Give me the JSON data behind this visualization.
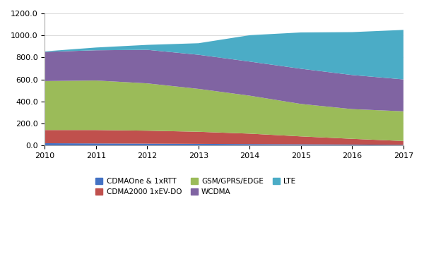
{
  "years": [
    2010,
    2011,
    2012,
    2013,
    2014,
    2015,
    2016,
    2017
  ],
  "cdma_one": [
    20,
    18,
    16,
    14,
    12,
    10,
    8,
    5
  ],
  "cdma2000": [
    120,
    122,
    118,
    110,
    95,
    72,
    52,
    35
  ],
  "gsm": [
    445,
    450,
    430,
    390,
    345,
    295,
    270,
    270
  ],
  "wcdma": [
    265,
    275,
    305,
    310,
    310,
    320,
    310,
    290
  ],
  "lte": [
    5,
    25,
    45,
    105,
    240,
    330,
    390,
    450
  ],
  "colors": {
    "cdma_one": "#4472C4",
    "cdma2000": "#C0504D",
    "gsm": "#9BBB59",
    "wcdma": "#8064A2",
    "lte": "#4BACC6"
  },
  "labels": {
    "cdma_one": "CDMAOne & 1xRTT",
    "cdma2000": "CDMA2000 1xEV-DO",
    "gsm": "GSM/GPRS/EDGE",
    "wcdma": "WCDMA",
    "lte": "LTE"
  },
  "ylim": [
    0,
    1200
  ],
  "yticks": [
    0.0,
    200.0,
    400.0,
    600.0,
    800.0,
    1000.0,
    1200.0
  ],
  "background_color": "#FFFFFF",
  "grid_color": "#CCCCCC"
}
